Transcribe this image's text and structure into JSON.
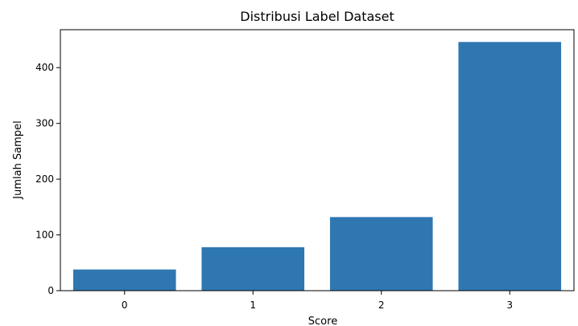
{
  "chart_data": {
    "type": "bar",
    "title": "Distribusi Label Dataset",
    "xlabel": "Score",
    "ylabel": "Jumlah Sampel",
    "categories": [
      "0",
      "1",
      "2",
      "3"
    ],
    "values": [
      38,
      78,
      132,
      446
    ],
    "ylim": [
      0,
      468
    ],
    "yticks": [
      0,
      100,
      200,
      300,
      400
    ],
    "bar_color": "#2f77b1",
    "grid": false,
    "legend": false
  }
}
